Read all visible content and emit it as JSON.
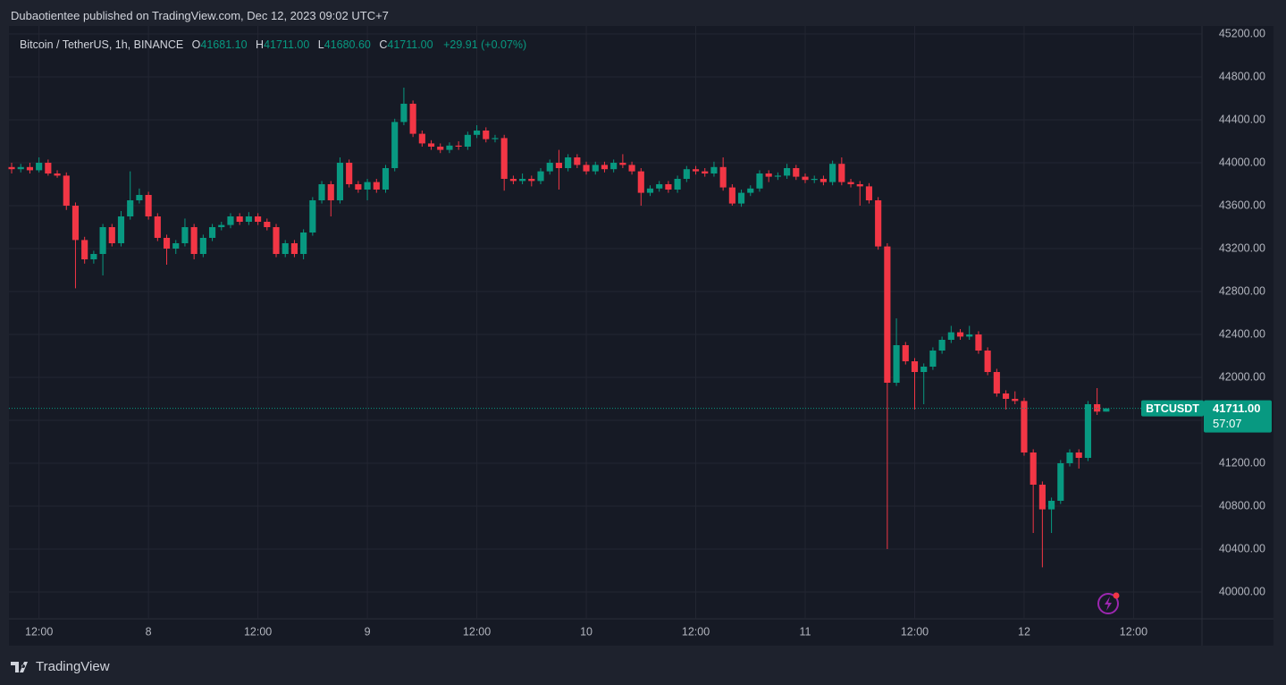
{
  "header": {
    "publisher": "Dubaotientee published on TradingView.com, Dec 12, 2023 09:02 UTC+7"
  },
  "footer": {
    "brand": "TradingView"
  },
  "chart_data": {
    "type": "candlestick",
    "legend": {
      "symbol": "Bitcoin / TetherUS, 1h, BINANCE",
      "o_label": "O",
      "o": "41681.10",
      "h_label": "H",
      "h": "41711.00",
      "l_label": "L",
      "l": "41680.60",
      "c_label": "C",
      "c": "41711.00",
      "change": "+29.91 (+0.07%)"
    },
    "price_tag": {
      "symbol": "BTCUSDT",
      "price": "41711.00",
      "countdown": "57:07"
    },
    "up_color": "#089981",
    "down_color": "#f23645",
    "grid": true,
    "xlim": [
      8.9,
      139.5
    ],
    "xticks": [
      {
        "value": 12,
        "label": "12:00"
      },
      {
        "value": 24,
        "label": "8"
      },
      {
        "value": 36,
        "label": "12:00"
      },
      {
        "value": 48,
        "label": "9"
      },
      {
        "value": 60,
        "label": "12:00"
      },
      {
        "value": 72,
        "label": "10"
      },
      {
        "value": 84,
        "label": "12:00"
      },
      {
        "value": 96,
        "label": "11"
      },
      {
        "value": 108,
        "label": "12:00"
      },
      {
        "value": 120,
        "label": "12"
      },
      {
        "value": 132,
        "label": "12:00"
      }
    ],
    "ylim": [
      39750,
      45275
    ],
    "yticks": [
      {
        "value": 45200,
        "label": "45200.00"
      },
      {
        "value": 44800,
        "label": "44800.00"
      },
      {
        "value": 44400,
        "label": "44400.00"
      },
      {
        "value": 44000,
        "label": "44000.00"
      },
      {
        "value": 43600,
        "label": "43600.00"
      },
      {
        "value": 43200,
        "label": "43200.00"
      },
      {
        "value": 42800,
        "label": "42800.00"
      },
      {
        "value": 42400,
        "label": "42400.00"
      },
      {
        "value": 42000,
        "label": "42000.00"
      },
      {
        "value": 41600,
        "label": "41600.00"
      },
      {
        "value": 41200,
        "label": "41200.00"
      },
      {
        "value": 40800,
        "label": "40800.00"
      },
      {
        "value": 40400,
        "label": "40400.00"
      },
      {
        "value": 40000,
        "label": "40000.00"
      }
    ],
    "x": [
      9,
      10,
      11,
      12,
      13,
      14,
      15,
      16,
      17,
      18,
      19,
      20,
      21,
      22,
      23,
      24,
      25,
      26,
      27,
      28,
      29,
      30,
      31,
      32,
      33,
      34,
      35,
      36,
      37,
      38,
      39,
      40,
      41,
      42,
      43,
      44,
      45,
      46,
      47,
      48,
      49,
      50,
      51,
      52,
      53,
      54,
      55,
      56,
      57,
      58,
      59,
      60,
      61,
      62,
      63,
      64,
      65,
      66,
      67,
      68,
      69,
      70,
      71,
      72,
      73,
      74,
      75,
      76,
      77,
      78,
      79,
      80,
      81,
      82,
      83,
      84,
      85,
      86,
      87,
      88,
      89,
      90,
      91,
      92,
      93,
      94,
      95,
      96,
      97,
      98,
      99,
      100,
      101,
      102,
      103,
      104,
      105,
      106,
      107,
      108,
      109,
      110,
      111,
      112,
      113,
      114,
      115,
      116,
      117,
      118,
      119,
      120,
      121,
      122,
      123,
      124,
      125,
      126,
      127,
      128,
      129
    ],
    "ohlc": [
      [
        43960,
        44000,
        43900,
        43940
      ],
      [
        43940,
        43990,
        43910,
        43960
      ],
      [
        43960,
        44000,
        43900,
        43930
      ],
      [
        43930,
        44050,
        43910,
        44000
      ],
      [
        44000,
        44030,
        43880,
        43900
      ],
      [
        43900,
        43930,
        43860,
        43880
      ],
      [
        43880,
        43910,
        43560,
        43600
      ],
      [
        43600,
        43630,
        42830,
        43280
      ],
      [
        43280,
        43310,
        43060,
        43100
      ],
      [
        43100,
        43180,
        43060,
        43150
      ],
      [
        43150,
        43430,
        42950,
        43400
      ],
      [
        43400,
        43430,
        43220,
        43250
      ],
      [
        43250,
        43550,
        43220,
        43500
      ],
      [
        43500,
        43920,
        43470,
        43650
      ],
      [
        43650,
        43760,
        43620,
        43700
      ],
      [
        43700,
        43730,
        43470,
        43500
      ],
      [
        43500,
        43530,
        43270,
        43300
      ],
      [
        43300,
        43330,
        43050,
        43200
      ],
      [
        43200,
        43280,
        43150,
        43250
      ],
      [
        43250,
        43480,
        43220,
        43400
      ],
      [
        43400,
        43430,
        43100,
        43150
      ],
      [
        43150,
        43330,
        43120,
        43300
      ],
      [
        43300,
        43430,
        43270,
        43400
      ],
      [
        43400,
        43450,
        43370,
        43420
      ],
      [
        43420,
        43530,
        43390,
        43500
      ],
      [
        43500,
        43530,
        43420,
        43450
      ],
      [
        43450,
        43540,
        43420,
        43500
      ],
      [
        43500,
        43530,
        43420,
        43450
      ],
      [
        43450,
        43480,
        43370,
        43400
      ],
      [
        43400,
        43430,
        43120,
        43150
      ],
      [
        43150,
        43280,
        43120,
        43250
      ],
      [
        43250,
        43280,
        43120,
        43150
      ],
      [
        43150,
        43380,
        43100,
        43350
      ],
      [
        43350,
        43680,
        43320,
        43650
      ],
      [
        43650,
        43830,
        43620,
        43800
      ],
      [
        43800,
        43830,
        43500,
        43650
      ],
      [
        43650,
        44050,
        43620,
        44000
      ],
      [
        44000,
        44030,
        43770,
        43800
      ],
      [
        43800,
        43830,
        43720,
        43750
      ],
      [
        43750,
        43850,
        43650,
        43820
      ],
      [
        43820,
        43850,
        43720,
        43750
      ],
      [
        43750,
        43980,
        43720,
        43950
      ],
      [
        43950,
        44410,
        43920,
        44380
      ],
      [
        44380,
        44700,
        44350,
        44550
      ],
      [
        44550,
        44580,
        44240,
        44270
      ],
      [
        44270,
        44300,
        44150,
        44180
      ],
      [
        44180,
        44210,
        44120,
        44150
      ],
      [
        44150,
        44180,
        44090,
        44120
      ],
      [
        44120,
        44190,
        44090,
        44160
      ],
      [
        44160,
        44200,
        44120,
        44150
      ],
      [
        44150,
        44290,
        44120,
        44260
      ],
      [
        44260,
        44350,
        44230,
        44300
      ],
      [
        44300,
        44330,
        44190,
        44220
      ],
      [
        44220,
        44260,
        44190,
        44230
      ],
      [
        44230,
        44260,
        43740,
        43850
      ],
      [
        43850,
        43880,
        43800,
        43830
      ],
      [
        43830,
        43900,
        43800,
        43850
      ],
      [
        43850,
        43880,
        43780,
        43830
      ],
      [
        43830,
        43950,
        43800,
        43920
      ],
      [
        43920,
        44030,
        43890,
        44000
      ],
      [
        44000,
        44120,
        43750,
        43950
      ],
      [
        43950,
        44080,
        43920,
        44050
      ],
      [
        44050,
        44080,
        43950,
        43980
      ],
      [
        43980,
        44010,
        43890,
        43920
      ],
      [
        43920,
        44010,
        43890,
        43980
      ],
      [
        43980,
        44010,
        43910,
        43940
      ],
      [
        43940,
        44030,
        43910,
        44000
      ],
      [
        44000,
        44080,
        43950,
        43980
      ],
      [
        43980,
        44010,
        43890,
        43920
      ],
      [
        43920,
        43950,
        43600,
        43720
      ],
      [
        43720,
        43790,
        43690,
        43760
      ],
      [
        43760,
        43830,
        43730,
        43800
      ],
      [
        43800,
        43830,
        43720,
        43750
      ],
      [
        43750,
        43880,
        43720,
        43850
      ],
      [
        43850,
        43970,
        43820,
        43940
      ],
      [
        43940,
        43970,
        43890,
        43920
      ],
      [
        43920,
        43950,
        43870,
        43900
      ],
      [
        43900,
        44010,
        43870,
        43960
      ],
      [
        43960,
        44050,
        43740,
        43770
      ],
      [
        43770,
        43800,
        43600,
        43620
      ],
      [
        43620,
        43750,
        43590,
        43720
      ],
      [
        43720,
        43790,
        43690,
        43760
      ],
      [
        43760,
        43930,
        43730,
        43900
      ],
      [
        43900,
        43930,
        43820,
        43870
      ],
      [
        43870,
        43910,
        43840,
        43880
      ],
      [
        43880,
        43990,
        43850,
        43950
      ],
      [
        43950,
        43980,
        43840,
        43870
      ],
      [
        43870,
        43900,
        43810,
        43840
      ],
      [
        43840,
        43880,
        43810,
        43850
      ],
      [
        43850,
        43880,
        43790,
        43820
      ],
      [
        43820,
        44020,
        43790,
        43990
      ],
      [
        43990,
        44050,
        43790,
        43820
      ],
      [
        43820,
        43850,
        43770,
        43800
      ],
      [
        43800,
        43830,
        43600,
        43780
      ],
      [
        43780,
        43810,
        43620,
        43650
      ],
      [
        43650,
        43680,
        43190,
        43220
      ],
      [
        43220,
        43250,
        40400,
        41950
      ],
      [
        41950,
        42550,
        41920,
        42300
      ],
      [
        42300,
        42330,
        42120,
        42150
      ],
      [
        42150,
        42180,
        41700,
        42050
      ],
      [
        42050,
        42130,
        41750,
        42100
      ],
      [
        42100,
        42280,
        42070,
        42250
      ],
      [
        42250,
        42380,
        42220,
        42350
      ],
      [
        42350,
        42480,
        42320,
        42420
      ],
      [
        42420,
        42450,
        42350,
        42380
      ],
      [
        42380,
        42480,
        42350,
        42400
      ],
      [
        42400,
        42430,
        42220,
        42250
      ],
      [
        42250,
        42280,
        42020,
        42050
      ],
      [
        42050,
        42080,
        41820,
        41850
      ],
      [
        41850,
        41880,
        41700,
        41800
      ],
      [
        41800,
        41870,
        41750,
        41780
      ],
      [
        41780,
        41810,
        41270,
        41300
      ],
      [
        41300,
        41330,
        40550,
        41000
      ],
      [
        41000,
        41030,
        40230,
        40770
      ],
      [
        40770,
        40880,
        40550,
        40850
      ],
      [
        40850,
        41230,
        40820,
        41200
      ],
      [
        41200,
        41330,
        41170,
        41300
      ],
      [
        41300,
        41330,
        41150,
        41250
      ],
      [
        41250,
        41780,
        41220,
        41750
      ],
      [
        41750,
        41900,
        41650,
        41681.1
      ],
      [
        41681.1,
        41711,
        41680.6,
        41711
      ]
    ]
  }
}
